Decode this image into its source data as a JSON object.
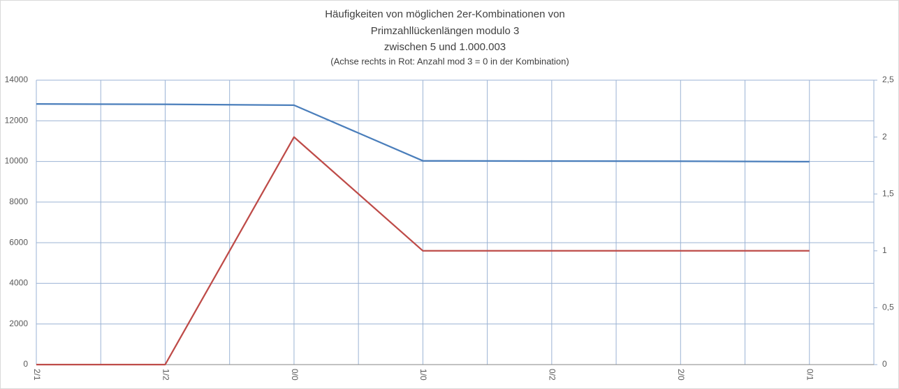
{
  "chart_data": {
    "type": "line",
    "title": [
      "Häufigkeiten von möglichen 2er-Kombinationen von",
      "Primzahllückenlängen modulo 3",
      "zwischen 5 und 1.000.003"
    ],
    "subtitle": "(Achse rechts in Rot: Anzahl mod 3 = 0  in der Kombination)",
    "categories": [
      "2/1",
      "1/2",
      "0/0",
      "1/0",
      "0/2",
      "2/0",
      "0/1"
    ],
    "series": [
      {
        "color": "#4a7ebb",
        "values": [
          12830,
          12810,
          12770,
          10030,
          10020,
          10010,
          9990
        ]
      },
      {
        "color": "#be4b48",
        "axis": "y2",
        "values": [
          0,
          0,
          2,
          1,
          1,
          1,
          1
        ]
      }
    ],
    "ylim": [
      0,
      14000
    ],
    "yticks": [
      0,
      2000,
      4000,
      6000,
      8000,
      10000,
      12000,
      14000
    ],
    "y2lim": [
      0,
      2.5
    ],
    "y2ticks": [
      0,
      {
        "value": 0.5,
        "label": "0,5"
      },
      1,
      {
        "value": 1.5,
        "label": "1,5"
      },
      2,
      {
        "value": 2.5,
        "label": "2,5"
      }
    ],
    "grid": true
  }
}
